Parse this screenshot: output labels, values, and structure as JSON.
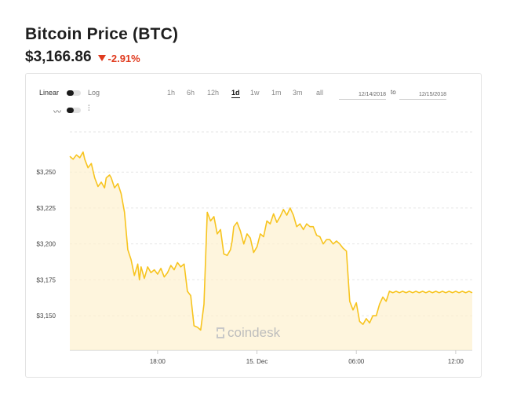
{
  "header": {
    "title": "Bitcoin Price (BTC)",
    "price": "$3,166.86",
    "change": "-2.91%",
    "change_color": "#e03a1e"
  },
  "controls": {
    "linear_label": "Linear",
    "log_label": "Log",
    "line_icon": "line-chart-icon",
    "candle_icon": "candlestick-icon",
    "ranges": [
      "1h",
      "6h",
      "12h",
      "1d",
      "1w",
      "1m",
      "3m",
      "all"
    ],
    "active_range": "1d",
    "date_from": "12/14/2018",
    "to_label": "to",
    "date_to": "12/15/2018"
  },
  "watermark": "coindesk",
  "chart_data": {
    "type": "area",
    "line_color": "#f7c41f",
    "fill_color": "#fdf1cf",
    "grid": true,
    "y_ticks": [
      "$3,150",
      "$3,175",
      "$3,200",
      "$3,225",
      "$3,250"
    ],
    "y_tick_values": [
      3150,
      3175,
      3200,
      3225,
      3250
    ],
    "x_ticks": [
      "18:00",
      "15. Dec",
      "06:00",
      "12:00"
    ],
    "x_tick_hours": [
      18,
      24,
      30,
      36
    ],
    "xlim_hours": [
      12.7,
      37.0
    ],
    "ylim": [
      3126,
      3278
    ],
    "series": [
      {
        "x": [
          12.7,
          12.9,
          13.1,
          13.3,
          13.5,
          13.6,
          13.8,
          14.0,
          14.2,
          14.4,
          14.6,
          14.8,
          14.9,
          15.1,
          15.2,
          15.4,
          15.6,
          15.8,
          16.0,
          16.2,
          16.4,
          16.6,
          16.8,
          16.9,
          17.0,
          17.2,
          17.4,
          17.6,
          17.8,
          18.0,
          18.2,
          18.4,
          18.6,
          18.8,
          19.0,
          19.2,
          19.4,
          19.6,
          19.8,
          20.0,
          20.2,
          20.4,
          20.6,
          20.8,
          21.0,
          21.2,
          21.4,
          21.6,
          21.8,
          22.0,
          22.2,
          22.4,
          22.5,
          22.6,
          22.8,
          23.0,
          23.2,
          23.4,
          23.6,
          23.8,
          24.0,
          24.2,
          24.4,
          24.6,
          24.8,
          25.0,
          25.2,
          25.4,
          25.6,
          25.8,
          26.0,
          26.2,
          26.4,
          26.6,
          26.8,
          27.0,
          27.2,
          27.4,
          27.6,
          27.8,
          28.0,
          28.2,
          28.4,
          28.6,
          28.8,
          29.0,
          29.2,
          29.4,
          29.6,
          29.8,
          30.0,
          30.2,
          30.4,
          30.6,
          30.8,
          31.0,
          31.2,
          31.4,
          31.6,
          31.8,
          32.0,
          32.2,
          32.4,
          32.6,
          32.8,
          33.0,
          33.2,
          33.4,
          33.6,
          33.8,
          34.0,
          34.2,
          34.4,
          34.6,
          34.8,
          35.0,
          35.2,
          35.4,
          35.6,
          35.8,
          36.0,
          36.2,
          36.4,
          36.6,
          36.8,
          37.0
        ],
        "values": [
          3261,
          3259,
          3262,
          3260,
          3264,
          3259,
          3253,
          3256,
          3246,
          3240,
          3243,
          3239,
          3246,
          3248,
          3246,
          3239,
          3242,
          3235,
          3222,
          3196,
          3189,
          3178,
          3186,
          3175,
          3184,
          3176,
          3184,
          3180,
          3182,
          3179,
          3183,
          3177,
          3180,
          3185,
          3182,
          3187,
          3184,
          3186,
          3167,
          3164,
          3143,
          3142,
          3140,
          3158,
          3222,
          3216,
          3219,
          3207,
          3210,
          3193,
          3192,
          3196,
          3202,
          3212,
          3215,
          3209,
          3200,
          3207,
          3204,
          3194,
          3198,
          3207,
          3205,
          3216,
          3214,
          3221,
          3215,
          3219,
          3224,
          3220,
          3225,
          3220,
          3212,
          3214,
          3210,
          3214,
          3212,
          3212,
          3206,
          3205,
          3200,
          3203,
          3203,
          3200,
          3202,
          3200,
          3197,
          3195,
          3160,
          3154,
          3159,
          3146,
          3144,
          3148,
          3145,
          3150,
          3150,
          3158,
          3163,
          3160,
          3167,
          3166,
          3167,
          3166,
          3167,
          3166,
          3167,
          3166,
          3167,
          3166,
          3167,
          3166,
          3167,
          3166,
          3167,
          3166,
          3167,
          3166,
          3167,
          3166,
          3167,
          3166,
          3167,
          3166,
          3167,
          3166
        ]
      }
    ]
  }
}
